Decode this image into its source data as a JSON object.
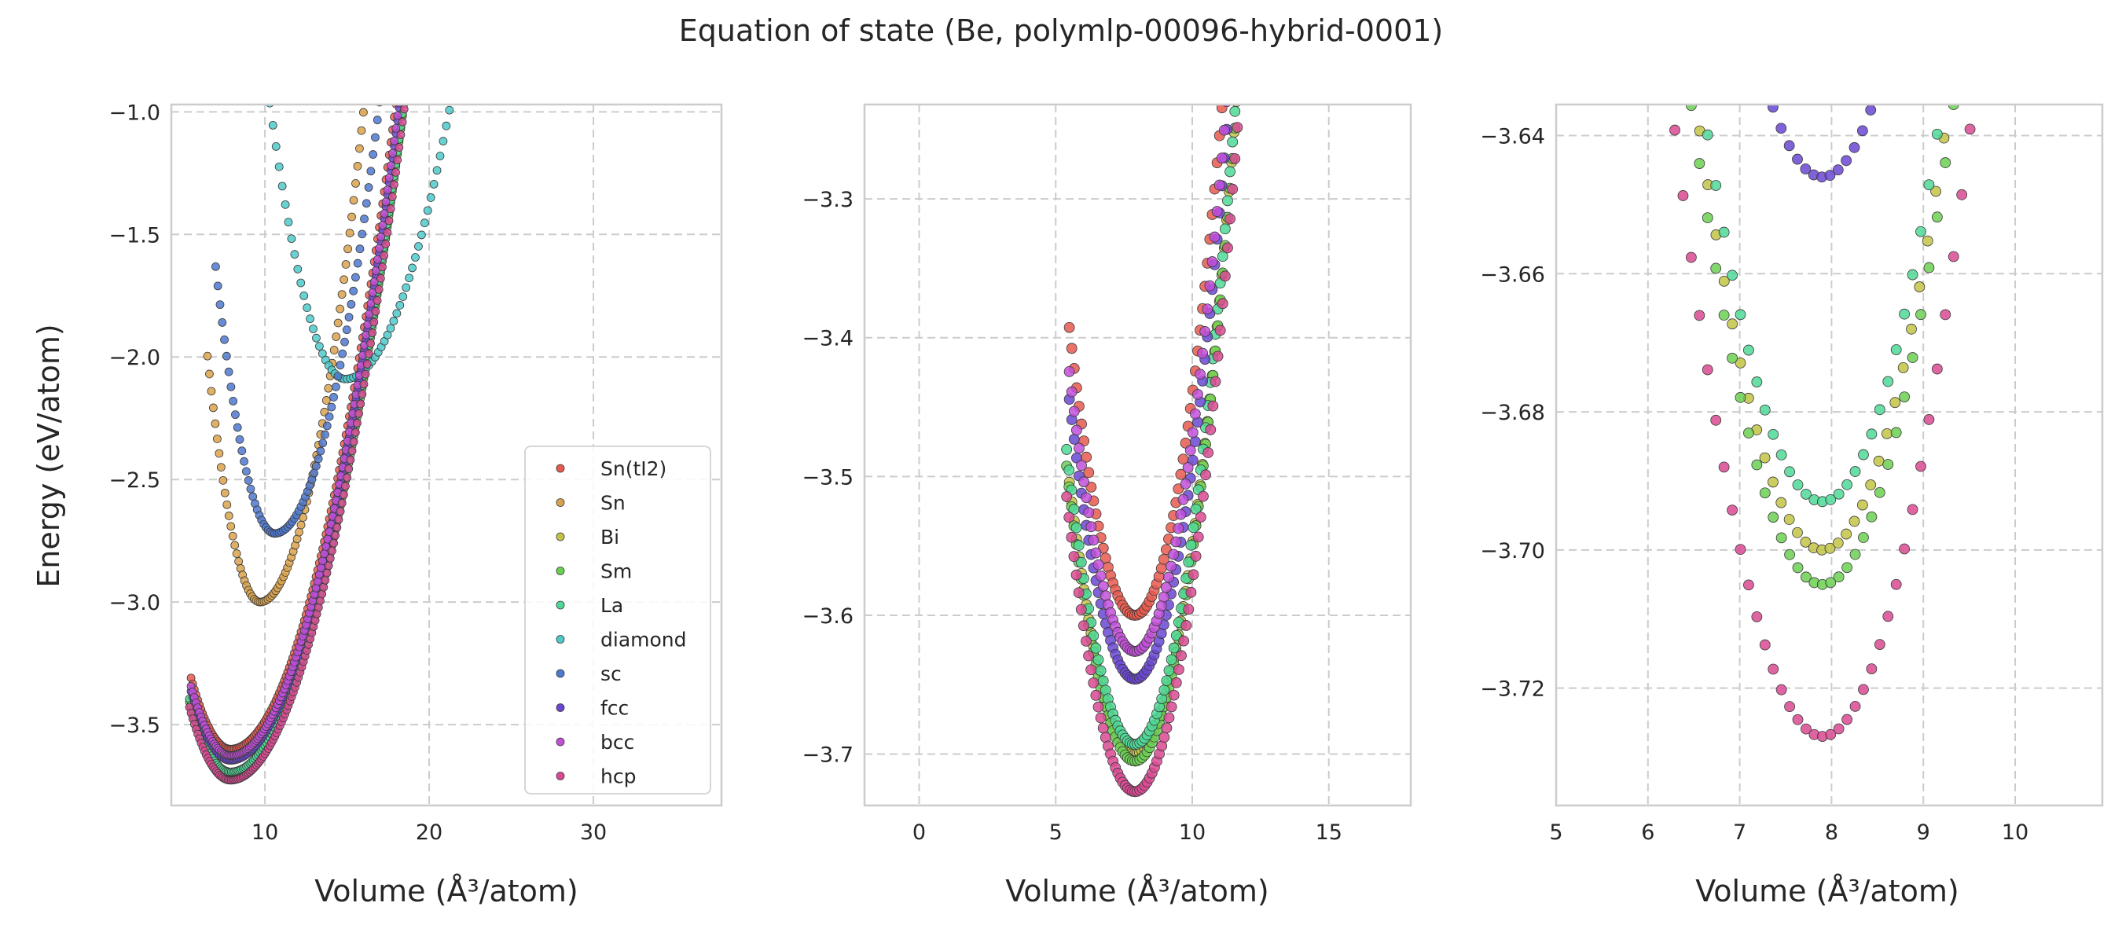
{
  "figure": {
    "title": "Equation of state (Be, polymlp-00096-hybrid-0001)"
  },
  "chart_data": [
    {
      "type": "scatter",
      "panel": "full-range",
      "xlabel": "Volume (Å³/atom)",
      "ylabel": "Energy (eV/atom)",
      "xlim": [
        4.3,
        37.8
      ],
      "ylim": [
        -3.83,
        -0.97
      ],
      "xticks": [
        10,
        20,
        30
      ],
      "yticks": [
        -3.5,
        -3.0,
        -2.5,
        -2.0,
        -1.5,
        -1.0
      ],
      "legend_placement": "lower-right",
      "grid": true
    },
    {
      "type": "scatter",
      "panel": "zoom-1",
      "xlabel": "Volume (Å³/atom)",
      "ylabel": "",
      "xlim": [
        -2.0,
        18.0
      ],
      "ylim": [
        -3.737,
        -3.232
      ],
      "xticks": [
        0,
        5,
        10,
        15
      ],
      "yticks": [
        -3.7,
        -3.6,
        -3.5,
        -3.4,
        -3.3
      ],
      "grid": true
    },
    {
      "type": "scatter",
      "panel": "zoom-2",
      "xlabel": "Volume (Å³/atom)",
      "ylabel": "",
      "xlim": [
        5.0,
        10.95
      ],
      "ylim": [
        -3.737,
        -3.6355
      ],
      "xticks": [
        5,
        6,
        7,
        8,
        9,
        10
      ],
      "yticks": [
        -3.72,
        -3.7,
        -3.68,
        -3.66,
        -3.64
      ],
      "grid": true
    }
  ],
  "series": [
    {
      "name": "Sn(tI2)",
      "color": "#e8594f",
      "e0": -3.6,
      "v0": 7.9,
      "b": 0.036,
      "vmin": 5.5,
      "vmax": 19.6
    },
    {
      "name": "Sn",
      "color": "#d9a24a",
      "e0": -3.0,
      "v0": 9.7,
      "b": 0.07,
      "vmin": 6.5,
      "vmax": 23.0
    },
    {
      "name": "Bi",
      "color": "#c3c445",
      "e0": -3.7,
      "v0": 7.9,
      "b": 0.034,
      "vmin": 5.5,
      "vmax": 19.6
    },
    {
      "name": "Sm",
      "color": "#6bcf52",
      "e0": -3.705,
      "v0": 7.9,
      "b": 0.034,
      "vmin": 5.4,
      "vmax": 19.6
    },
    {
      "name": "La",
      "color": "#4fd896",
      "e0": -3.693,
      "v0": 7.9,
      "b": 0.034,
      "vmin": 5.4,
      "vmax": 19.6
    },
    {
      "name": "diamond",
      "color": "#4ec9ca",
      "e0": -2.09,
      "v0": 14.9,
      "b": 0.038,
      "vmin": 10.3,
      "vmax": 36.5
    },
    {
      "name": "sc",
      "color": "#4f78cf",
      "e0": -2.72,
      "v0": 10.6,
      "b": 0.06,
      "vmin": 7.0,
      "vmax": 25.5
    },
    {
      "name": "fcc",
      "color": "#6a47d2",
      "e0": -3.646,
      "v0": 7.9,
      "b": 0.035,
      "vmin": 5.5,
      "vmax": 19.6
    },
    {
      "name": "bcc",
      "color": "#c24fd8",
      "e0": -3.626,
      "v0": 7.9,
      "b": 0.035,
      "vmin": 5.5,
      "vmax": 19.6
    },
    {
      "name": "hcp",
      "color": "#d94a92",
      "e0": -3.727,
      "v0": 7.9,
      "b": 0.034,
      "vmin": 5.4,
      "vmax": 19.6
    }
  ],
  "style": {
    "spine_color": "#cccccc",
    "grid_color": "#cccccc",
    "marker_edge": "#3a3a3a"
  }
}
